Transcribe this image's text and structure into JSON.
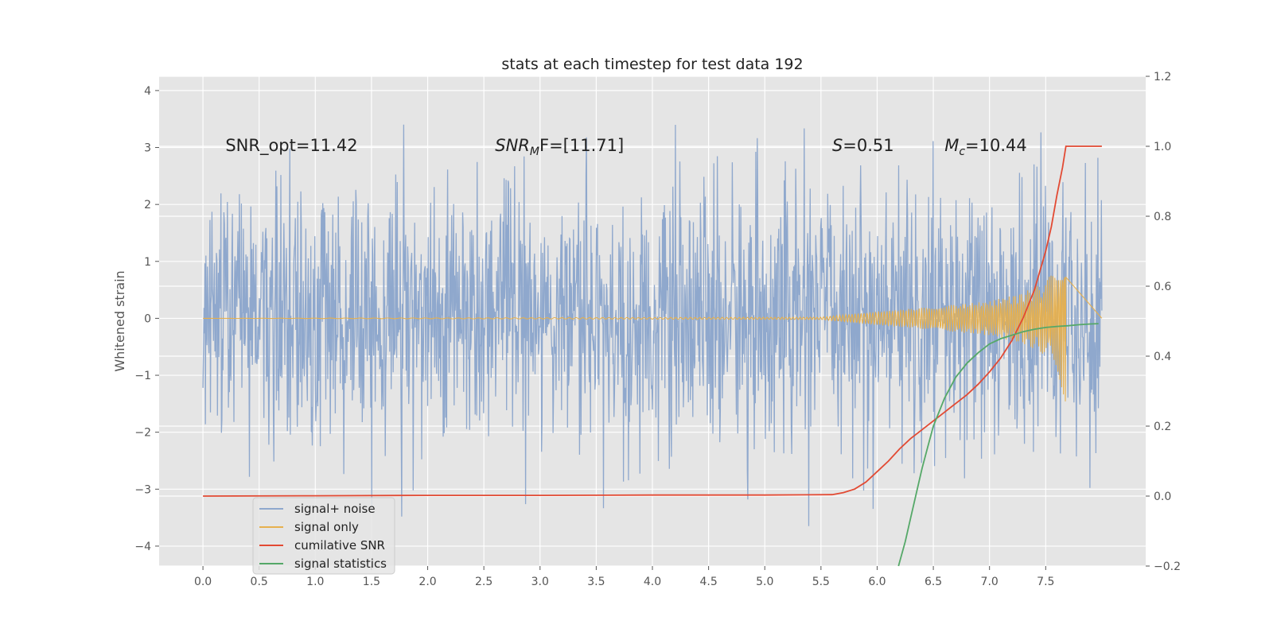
{
  "chart_data": {
    "type": "line",
    "title": "stats at each timestep for test data 192",
    "xlabel": "",
    "ylabel": "Whitened strain",
    "y2label": "",
    "xlim": [
      -0.39,
      8.39
    ],
    "ylim": [
      -4.35,
      4.25
    ],
    "y2lim": [
      -0.2,
      1.2
    ],
    "x_ticks": [
      0.0,
      0.5,
      1.0,
      1.5,
      2.0,
      2.5,
      3.0,
      3.5,
      4.0,
      4.5,
      5.0,
      5.5,
      6.0,
      6.5,
      7.0,
      7.5
    ],
    "x_tick_labels": [
      "0.0",
      "0.5",
      "1.0",
      "1.5",
      "2.0",
      "2.5",
      "3.0",
      "3.5",
      "4.0",
      "4.5",
      "5.0",
      "5.5",
      "6.0",
      "6.5",
      "7.0",
      "7.5"
    ],
    "y_ticks": [
      -4,
      -3,
      -2,
      -1,
      0,
      1,
      2,
      3,
      4
    ],
    "y_tick_labels": [
      "−4",
      "−3",
      "−2",
      "−1",
      "0",
      "1",
      "2",
      "3",
      "4"
    ],
    "y2_ticks": [
      -0.2,
      0.0,
      0.2,
      0.4,
      0.6,
      0.8,
      1.0,
      1.2
    ],
    "y2_tick_labels": [
      "−0.2",
      "0.0",
      "0.2",
      "0.4",
      "0.6",
      "0.8",
      "1.0",
      "1.2"
    ],
    "grid": true,
    "legend_position": "lower-left",
    "annotations": [
      {
        "main": "SNR_opt=11.42",
        "sub": "",
        "rest": "",
        "x": 0.2,
        "y": 3.05
      },
      {
        "main": "SNR",
        "sub": "M",
        "rest": "F=[11.71]",
        "x": 2.6,
        "y": 3.05
      },
      {
        "main": "S",
        "sub": "",
        "rest": "=0.51",
        "x": 5.6,
        "y": 3.05
      },
      {
        "main": "M",
        "sub": "c",
        "rest": "=10.44",
        "x": 6.6,
        "y": 3.05
      }
    ],
    "series": [
      {
        "name": "signal+ noise",
        "color": "#8fa8cd",
        "axis": "left",
        "description_envelope": {
          "x_range": [
            0.0,
            8.0
          ],
          "typical_amplitude": 1.4,
          "peak_max": 3.9,
          "peak_min": -3.75
        }
      },
      {
        "name": "signal only",
        "color": "#e6b04e",
        "axis": "left",
        "envelope": {
          "x": [
            0.0,
            5.5,
            6.0,
            6.5,
            7.0,
            7.3,
            7.5,
            7.6,
            7.68
          ],
          "amp": [
            0.0,
            0.02,
            0.12,
            0.2,
            0.3,
            0.45,
            0.65,
            0.9,
            1.5
          ]
        }
      },
      {
        "name": "cumilative SNR",
        "color": "#e24a33",
        "axis": "right",
        "x": [
          0.0,
          1.0,
          2.0,
          3.0,
          4.0,
          5.0,
          5.6,
          5.7,
          5.8,
          5.9,
          6.0,
          6.1,
          6.2,
          6.3,
          6.4,
          6.5,
          6.6,
          6.7,
          6.8,
          6.9,
          7.0,
          7.1,
          7.2,
          7.3,
          7.4,
          7.5,
          7.55,
          7.6,
          7.65,
          7.68,
          7.8,
          8.0
        ],
        "y": [
          0.0,
          0.001,
          0.002,
          0.002,
          0.003,
          0.003,
          0.004,
          0.01,
          0.02,
          0.04,
          0.07,
          0.1,
          0.135,
          0.165,
          0.19,
          0.215,
          0.24,
          0.265,
          0.29,
          0.32,
          0.355,
          0.395,
          0.445,
          0.51,
          0.59,
          0.7,
          0.77,
          0.86,
          0.94,
          1.0,
          1.0,
          1.0
        ]
      },
      {
        "name": "signal statistics",
        "color": "#55a868",
        "axis": "right",
        "x": [
          6.19,
          6.25,
          6.3,
          6.35,
          6.4,
          6.45,
          6.5,
          6.6,
          6.7,
          6.8,
          6.9,
          7.0,
          7.1,
          7.2,
          7.3,
          7.4,
          7.5,
          7.6,
          7.7,
          7.8,
          7.9,
          7.97
        ],
        "y": [
          -0.2,
          -0.13,
          -0.06,
          0.01,
          0.08,
          0.14,
          0.2,
          0.28,
          0.34,
          0.38,
          0.41,
          0.435,
          0.45,
          0.46,
          0.47,
          0.477,
          0.482,
          0.485,
          0.487,
          0.49,
          0.492,
          0.493
        ]
      }
    ]
  }
}
